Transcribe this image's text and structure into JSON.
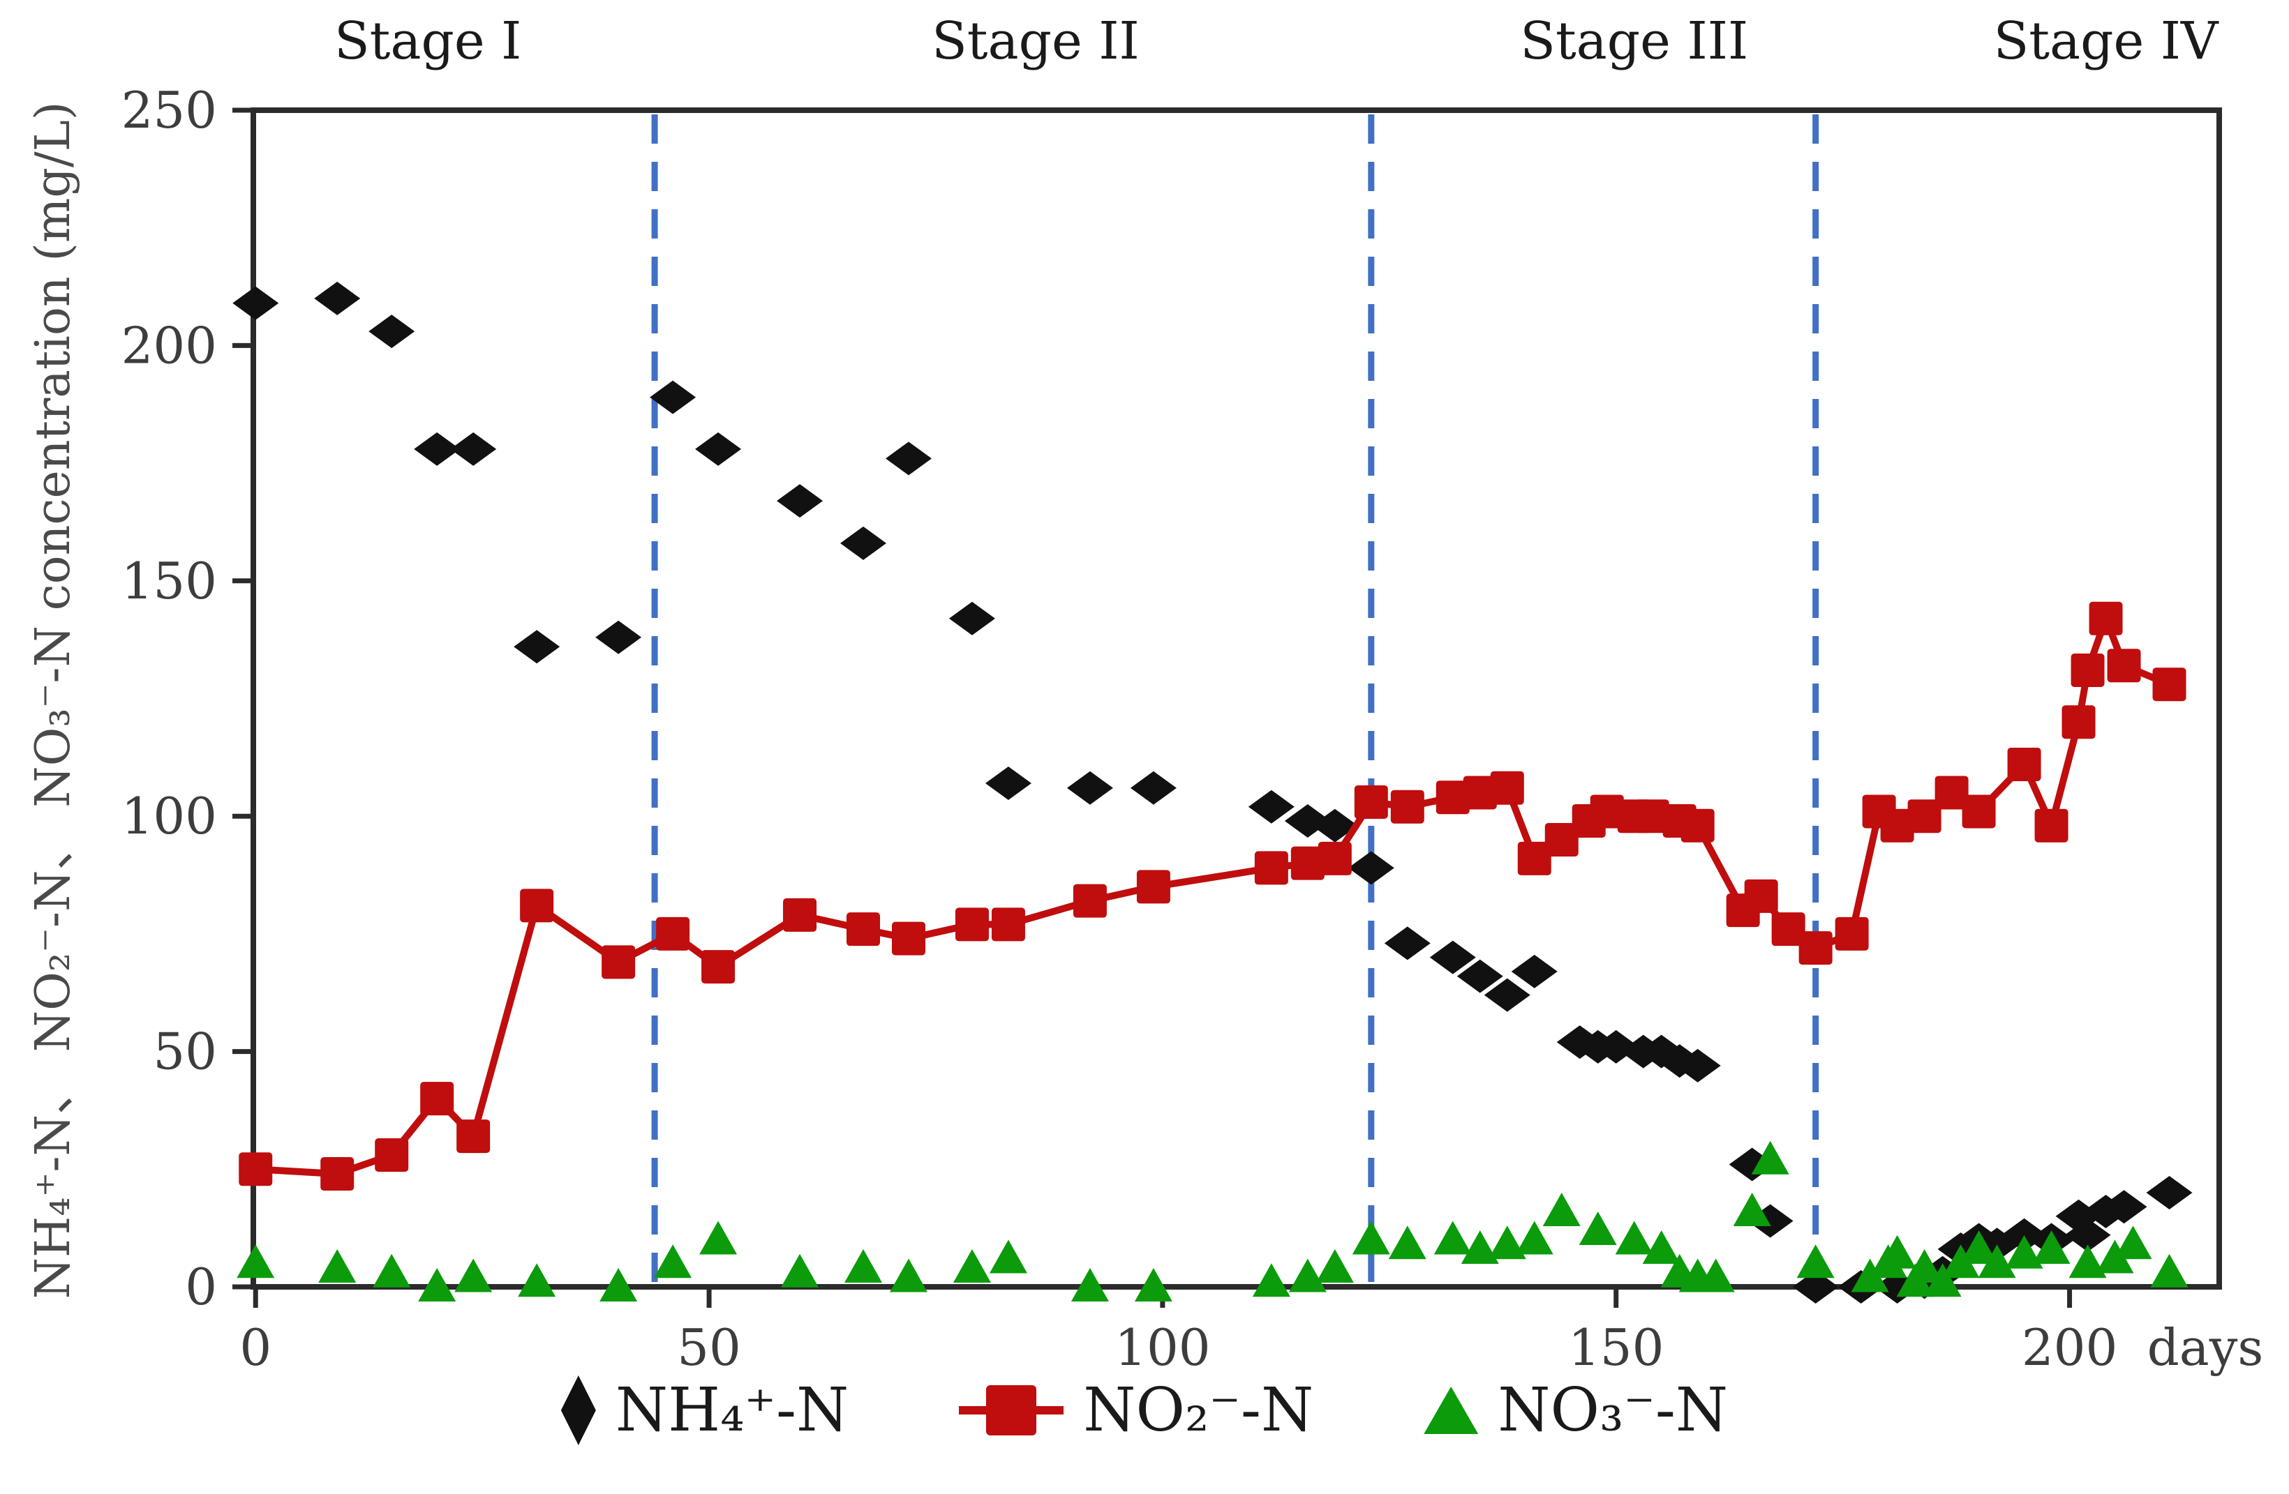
{
  "figure": {
    "y_axis_label": "NH₄⁺-N、 NO₂⁻-N、 NO₃⁻-N concentration (mg/L)",
    "x_axis_unit": "days",
    "legend_items": [
      {
        "label": "NH₄⁺-N",
        "marker": "diamond",
        "color": "#111111"
      },
      {
        "label": "NO₂⁻-N",
        "marker": "square",
        "color": "#c00d0d"
      },
      {
        "label": "NO₃⁻-N",
        "marker": "triangle",
        "color": "#0b9b0b"
      }
    ],
    "colors": {
      "nh4": "#111111",
      "no2": "#c00d0d",
      "no3": "#0b9b0b",
      "stage_divider": "#4170c4",
      "axis": "#2b2b2b",
      "tick_text": "#3d3d3d"
    }
  },
  "chart_data": {
    "type": "scatter",
    "title": "",
    "xlabel": "days",
    "ylabel": "NH₄⁺-N、 NO₂⁻-N、 NO₃⁻-N concentration (mg/L)",
    "xlim": [
      -0.25,
      216.5
    ],
    "ylim": [
      0,
      250
    ],
    "x_ticks": [
      0,
      50,
      100,
      150,
      200
    ],
    "y_ticks": [
      0,
      50,
      100,
      150,
      200,
      250
    ],
    "grid": false,
    "legend_position": "bottom",
    "stage_dividers_x": [
      44,
      123,
      172
    ],
    "stage_labels": [
      {
        "label": "Stage I",
        "x": 19
      },
      {
        "label": "Stage II",
        "x": 86
      },
      {
        "label": "Stage III",
        "x": 152
      },
      {
        "label": "Stage IV",
        "x": 204
      }
    ],
    "series": [
      {
        "name": "NH₄⁺-N",
        "marker": "diamond",
        "color": "#111111",
        "line": false,
        "points": [
          [
            0,
            209
          ],
          [
            9,
            210
          ],
          [
            15,
            203
          ],
          [
            20,
            178
          ],
          [
            24,
            178
          ],
          [
            31,
            136
          ],
          [
            40,
            138
          ],
          [
            46,
            189
          ],
          [
            51,
            178
          ],
          [
            60,
            167
          ],
          [
            67,
            158
          ],
          [
            72,
            176
          ],
          [
            79,
            142
          ],
          [
            83,
            107
          ],
          [
            92,
            106
          ],
          [
            99,
            106
          ],
          [
            112,
            102
          ],
          [
            116,
            99
          ],
          [
            119,
            98
          ],
          [
            123,
            89
          ],
          [
            127,
            73
          ],
          [
            132,
            70
          ],
          [
            135,
            66
          ],
          [
            138,
            62
          ],
          [
            141,
            67
          ],
          [
            146,
            52
          ],
          [
            148,
            51
          ],
          [
            150,
            51
          ],
          [
            153,
            50
          ],
          [
            155,
            50
          ],
          [
            157,
            48
          ],
          [
            159,
            47
          ],
          [
            165,
            26
          ],
          [
            167,
            14
          ],
          [
            172,
            0
          ],
          [
            177,
            0
          ],
          [
            181,
            0
          ],
          [
            184,
            1
          ],
          [
            186,
            3
          ],
          [
            188,
            8
          ],
          [
            190,
            10
          ],
          [
            192,
            9
          ],
          [
            195,
            11
          ],
          [
            198,
            10
          ],
          [
            201,
            15
          ],
          [
            202,
            11
          ],
          [
            204,
            16
          ],
          [
            206,
            17
          ],
          [
            211,
            20
          ]
        ]
      },
      {
        "name": "NO₂⁻-N",
        "marker": "square",
        "color": "#c00d0d",
        "line": true,
        "points": [
          [
            0,
            25
          ],
          [
            9,
            24
          ],
          [
            15,
            28
          ],
          [
            20,
            40
          ],
          [
            24,
            32
          ],
          [
            31,
            81
          ],
          [
            40,
            69
          ],
          [
            46,
            75
          ],
          [
            51,
            68
          ],
          [
            60,
            79
          ],
          [
            67,
            76
          ],
          [
            72,
            74
          ],
          [
            79,
            77
          ],
          [
            83,
            77
          ],
          [
            92,
            82
          ],
          [
            99,
            85
          ],
          [
            112,
            89
          ],
          [
            116,
            90
          ],
          [
            119,
            91
          ],
          [
            123,
            103
          ],
          [
            127,
            102
          ],
          [
            132,
            104
          ],
          [
            135,
            105
          ],
          [
            138,
            106
          ],
          [
            141,
            91
          ],
          [
            144,
            95
          ],
          [
            147,
            99
          ],
          [
            149,
            101
          ],
          [
            152,
            100
          ],
          [
            154,
            100
          ],
          [
            157,
            99
          ],
          [
            159,
            98
          ],
          [
            164,
            80
          ],
          [
            166,
            83
          ],
          [
            169,
            76
          ],
          [
            172,
            72
          ],
          [
            176,
            75
          ],
          [
            179,
            101
          ],
          [
            181,
            98
          ],
          [
            184,
            100
          ],
          [
            187,
            105
          ],
          [
            190,
            101
          ],
          [
            195,
            111
          ],
          [
            198,
            98
          ],
          [
            201,
            120
          ],
          [
            202,
            131
          ],
          [
            204,
            142
          ],
          [
            206,
            132
          ],
          [
            211,
            128
          ]
        ]
      },
      {
        "name": "NO₃⁻-N",
        "marker": "triangle",
        "color": "#0b9b0b",
        "line": false,
        "points": [
          [
            0,
            5
          ],
          [
            9,
            4
          ],
          [
            15,
            3
          ],
          [
            20,
            0
          ],
          [
            24,
            2
          ],
          [
            31,
            1
          ],
          [
            40,
            0
          ],
          [
            46,
            5
          ],
          [
            51,
            10
          ],
          [
            60,
            3
          ],
          [
            67,
            4
          ],
          [
            72,
            2
          ],
          [
            79,
            4
          ],
          [
            83,
            6
          ],
          [
            92,
            0
          ],
          [
            99,
            0
          ],
          [
            112,
            1
          ],
          [
            116,
            2
          ],
          [
            119,
            4
          ],
          [
            123,
            10
          ],
          [
            127,
            9
          ],
          [
            132,
            10
          ],
          [
            135,
            8
          ],
          [
            138,
            9
          ],
          [
            141,
            10
          ],
          [
            144,
            16
          ],
          [
            148,
            12
          ],
          [
            152,
            10
          ],
          [
            155,
            8
          ],
          [
            157,
            3
          ],
          [
            159,
            2
          ],
          [
            161,
            2
          ],
          [
            165,
            16
          ],
          [
            167,
            27
          ],
          [
            172,
            5
          ],
          [
            178,
            2
          ],
          [
            180,
            5
          ],
          [
            181,
            7
          ],
          [
            183,
            1
          ],
          [
            184,
            4
          ],
          [
            186,
            1
          ],
          [
            188,
            5
          ],
          [
            190,
            8
          ],
          [
            192,
            5
          ],
          [
            195,
            7
          ],
          [
            198,
            8
          ],
          [
            202,
            5
          ],
          [
            205,
            6
          ],
          [
            207,
            9
          ],
          [
            211,
            3
          ]
        ]
      }
    ]
  }
}
